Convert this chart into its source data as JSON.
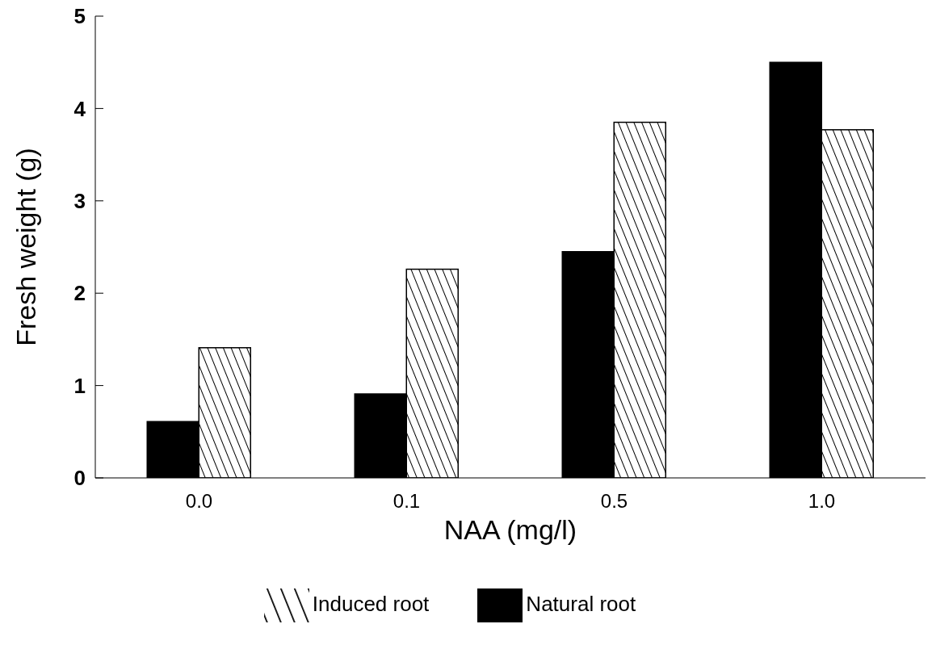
{
  "chart_data": {
    "type": "bar",
    "xlabel": "NAA (mg/l)",
    "ylabel": "Fresh weight (g)",
    "categories": [
      "0.0",
      "0.1",
      "0.5",
      "1.0"
    ],
    "series": [
      {
        "name": "Natural root",
        "color": "#000000",
        "values": [
          0.61,
          0.91,
          2.45,
          4.5
        ]
      },
      {
        "name": "Induced root",
        "color": "#000000",
        "values": [
          1.41,
          2.26,
          3.85,
          3.77
        ]
      }
    ],
    "ylim": [
      0,
      5
    ],
    "yticks": [
      0,
      1,
      2,
      3,
      4,
      5
    ],
    "grid": false,
    "legend": "bottom"
  }
}
